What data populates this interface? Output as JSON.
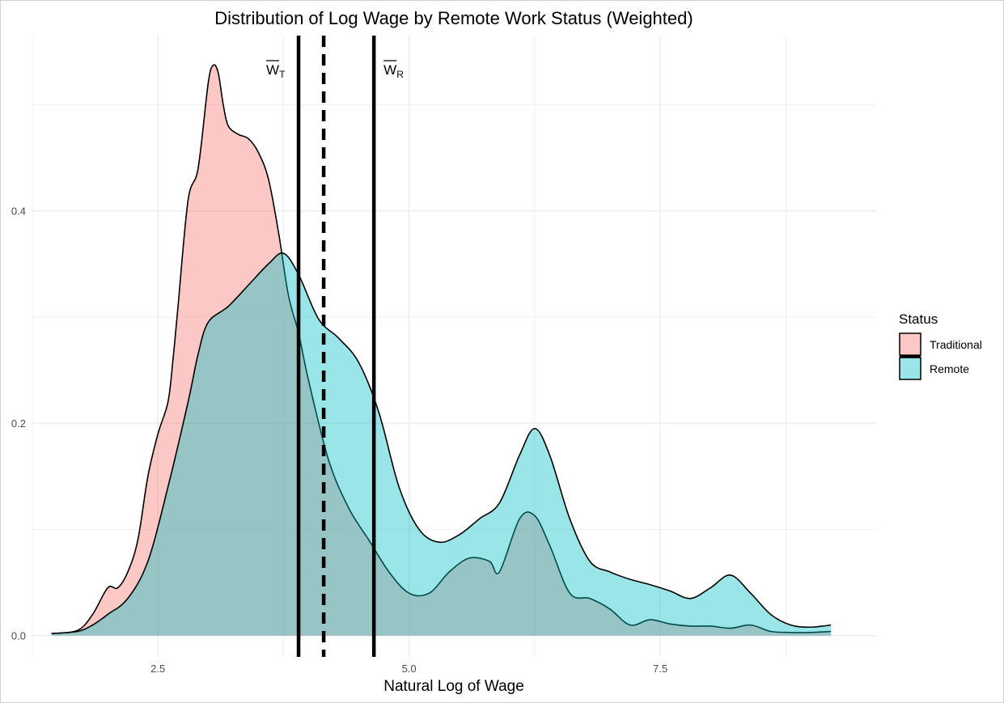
{
  "chart_data": {
    "type": "area",
    "title": "Distribution of Log Wage by Remote Work Status (Weighted)",
    "xlabel": "Natural Log of Wage",
    "ylabel": "",
    "xlim": [
      1.25,
      9.65
    ],
    "ylim": [
      -0.02,
      0.565
    ],
    "x_ticks": [
      2.5,
      5.0,
      7.5
    ],
    "x_tick_labels": [
      "2.5",
      "5.0",
      "7.5"
    ],
    "y_ticks": [
      0.0,
      0.2,
      0.4
    ],
    "y_tick_labels": [
      "0.0",
      "0.2",
      "0.4"
    ],
    "grid": true,
    "legend": {
      "title": "Status",
      "position": "right",
      "entries": [
        {
          "label": "Traditional",
          "color": "#f8766d"
        },
        {
          "label": "Remote",
          "color": "#00bfc4"
        }
      ]
    },
    "series": [
      {
        "name": "Traditional",
        "color": "#f8766d",
        "x": [
          1.44,
          1.7,
          1.85,
          2.0,
          2.1,
          2.2,
          2.3,
          2.4,
          2.5,
          2.6,
          2.65,
          2.7,
          2.8,
          2.9,
          3.0,
          3.05,
          3.1,
          3.15,
          3.2,
          3.3,
          3.4,
          3.5,
          3.6,
          3.7,
          3.8,
          3.9,
          4.0,
          4.2,
          4.4,
          4.6,
          4.8,
          5.0,
          5.2,
          5.4,
          5.6,
          5.8,
          5.9,
          6.1,
          6.25,
          6.4,
          6.6,
          6.8,
          7.0,
          7.2,
          7.4,
          7.6,
          7.8,
          8.0,
          8.2,
          8.4,
          8.6,
          8.8,
          9.0,
          9.2
        ],
        "y": [
          0.002,
          0.005,
          0.02,
          0.045,
          0.045,
          0.06,
          0.09,
          0.15,
          0.19,
          0.22,
          0.26,
          0.31,
          0.41,
          0.44,
          0.52,
          0.537,
          0.53,
          0.5,
          0.48,
          0.472,
          0.468,
          0.455,
          0.43,
          0.38,
          0.32,
          0.285,
          0.24,
          0.165,
          0.12,
          0.09,
          0.06,
          0.04,
          0.04,
          0.06,
          0.073,
          0.07,
          0.06,
          0.11,
          0.113,
          0.085,
          0.04,
          0.035,
          0.025,
          0.01,
          0.015,
          0.011,
          0.009,
          0.009,
          0.007,
          0.01,
          0.004,
          0.003,
          0.003,
          0.004
        ]
      },
      {
        "name": "Remote",
        "color": "#00bfc4",
        "x": [
          1.44,
          1.7,
          1.85,
          2.0,
          2.2,
          2.4,
          2.6,
          2.8,
          2.9,
          3.0,
          3.2,
          3.4,
          3.6,
          3.75,
          3.9,
          4.1,
          4.3,
          4.5,
          4.7,
          4.9,
          5.1,
          5.3,
          5.5,
          5.7,
          5.9,
          6.1,
          6.25,
          6.4,
          6.6,
          6.8,
          7.0,
          7.2,
          7.4,
          7.6,
          7.8,
          8.0,
          8.2,
          8.4,
          8.6,
          8.8,
          9.0,
          9.2
        ],
        "y": [
          0.002,
          0.004,
          0.01,
          0.02,
          0.035,
          0.07,
          0.14,
          0.22,
          0.265,
          0.295,
          0.31,
          0.33,
          0.35,
          0.36,
          0.34,
          0.298,
          0.28,
          0.257,
          0.21,
          0.14,
          0.1,
          0.088,
          0.095,
          0.11,
          0.125,
          0.17,
          0.195,
          0.17,
          0.11,
          0.07,
          0.06,
          0.053,
          0.048,
          0.042,
          0.035,
          0.045,
          0.057,
          0.04,
          0.02,
          0.01,
          0.008,
          0.01
        ]
      }
    ],
    "vlines": [
      {
        "x": 3.9,
        "style": "solid",
        "label_main": "W",
        "label_sub": "T",
        "label_side": "left"
      },
      {
        "x": 4.15,
        "style": "dashed"
      },
      {
        "x": 4.65,
        "style": "solid",
        "label_main": "W",
        "label_sub": "R",
        "label_side": "right"
      }
    ]
  }
}
